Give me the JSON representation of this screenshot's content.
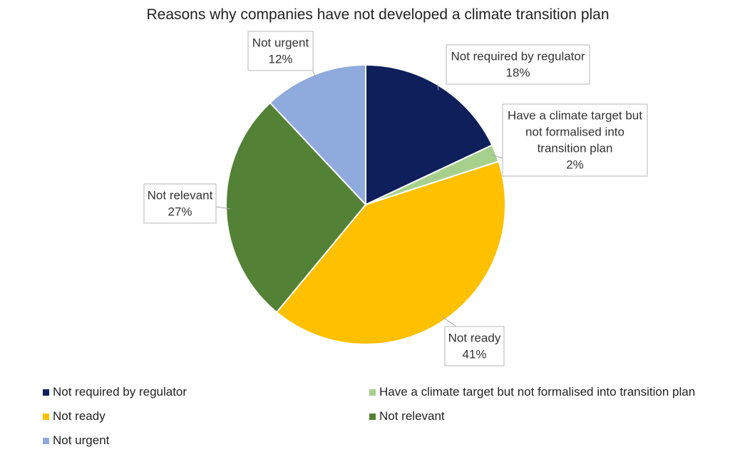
{
  "chart_data": {
    "type": "pie",
    "title": "Reasons why companies have not developed a climate transition plan",
    "slices": [
      {
        "name": "Not required by regulator",
        "value": 18,
        "label": "18%",
        "color": "#0e1f5b",
        "callout": [
          "Not required by regulator",
          "18%"
        ]
      },
      {
        "name": "Have a climate target but not formalised into transition plan",
        "value": 2,
        "label": "2%",
        "color": "#a8d08d",
        "callout": [
          "Have a climate target but",
          "not formalised into",
          "transition plan",
          "2%"
        ]
      },
      {
        "name": "Not ready",
        "value": 41,
        "label": "41%",
        "color": "#ffc000",
        "callout": [
          "Not ready",
          "41%"
        ]
      },
      {
        "name": "Not relevant",
        "value": 27,
        "label": "27%",
        "color": "#538135",
        "callout": [
          "Not relevant",
          "27%"
        ]
      },
      {
        "name": "Not urgent",
        "value": 12,
        "label": "12%",
        "color": "#8faadc",
        "callout": [
          "Not urgent",
          "12%"
        ]
      }
    ],
    "legend": [
      "Not required by regulator",
      "Have a climate target but not formalised into transition plan",
      "Not ready",
      "Not relevant",
      "Not urgent"
    ],
    "legend_position": "bottom"
  }
}
